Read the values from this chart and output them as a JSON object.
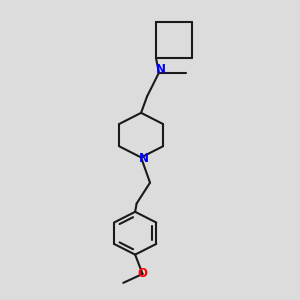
{
  "bg_color": "#dcdcdc",
  "bond_color": "#1a1a1a",
  "N_color": "#0000ff",
  "O_color": "#ff0000",
  "linewidth": 1.5,
  "fig_size": [
    3.0,
    3.0
  ],
  "dpi": 100,
  "xlim": [
    0,
    10
  ],
  "ylim": [
    0,
    10
  ]
}
